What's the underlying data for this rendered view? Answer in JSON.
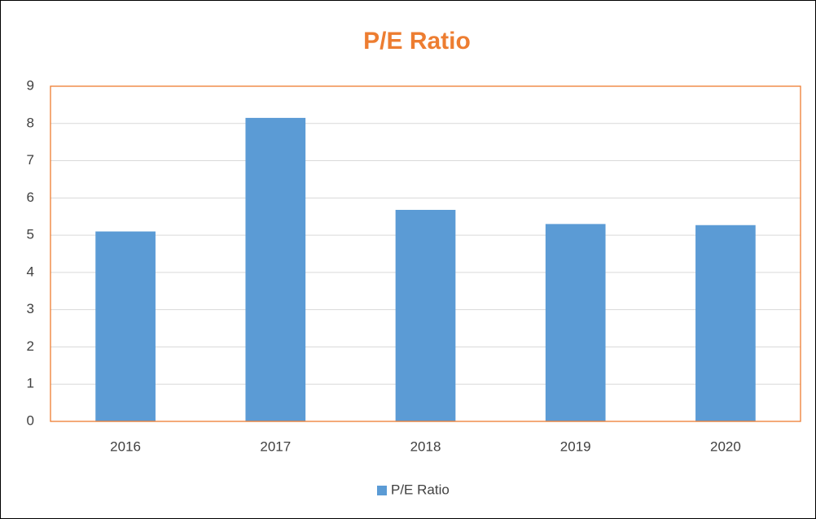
{
  "chart_data": {
    "type": "bar",
    "title": "P/E Ratio",
    "categories": [
      "2016",
      "2017",
      "2018",
      "2019",
      "2020"
    ],
    "series": [
      {
        "name": "P/E Ratio",
        "color": "#5b9bd5",
        "values": [
          5.1,
          8.15,
          5.68,
          5.3,
          5.27
        ]
      }
    ],
    "ylim": [
      0,
      9
    ],
    "yticks": [
      0,
      1,
      2,
      3,
      4,
      5,
      6,
      7,
      8,
      9
    ],
    "grid": true,
    "legend": "bottom"
  }
}
